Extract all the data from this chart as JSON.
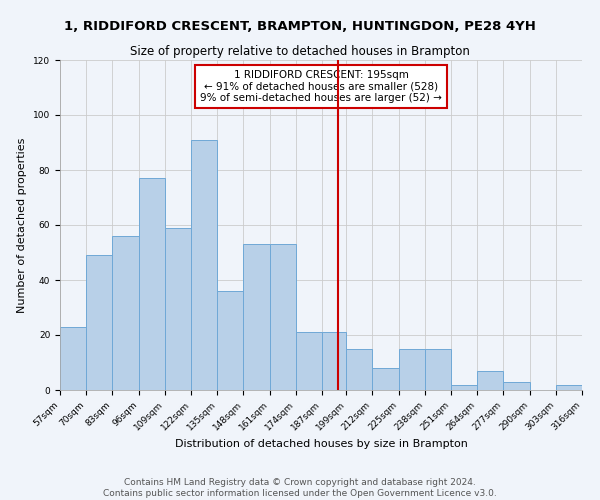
{
  "title": "1, RIDDIFORD CRESCENT, BRAMPTON, HUNTINGDON, PE28 4YH",
  "subtitle": "Size of property relative to detached houses in Brampton",
  "xlabel": "Distribution of detached houses by size in Brampton",
  "ylabel": "Number of detached properties",
  "bin_edges": [
    57,
    70,
    83,
    96,
    109,
    122,
    135,
    148,
    161,
    174,
    187,
    199,
    212,
    225,
    238,
    251,
    264,
    277,
    290,
    303,
    316
  ],
  "bar_heights": [
    23,
    49,
    56,
    77,
    59,
    91,
    36,
    53,
    53,
    21,
    21,
    15,
    8,
    15,
    15,
    2,
    7,
    3,
    0,
    2
  ],
  "bar_color": "#b8d0e8",
  "bar_edgecolor": "#6fa8d6",
  "grid_color": "#cccccc",
  "background_color": "#f0f4fa",
  "vline_x": 195,
  "vline_color": "#cc0000",
  "annotation_box_color": "#cc0000",
  "annotation_lines": [
    "1 RIDDIFORD CRESCENT: 195sqm",
    "← 91% of detached houses are smaller (528)",
    "9% of semi-detached houses are larger (52) →"
  ],
  "ylim": [
    0,
    120
  ],
  "yticks": [
    0,
    20,
    40,
    60,
    80,
    100,
    120
  ],
  "footer_line1": "Contains HM Land Registry data © Crown copyright and database right 2024.",
  "footer_line2": "Contains public sector information licensed under the Open Government Licence v3.0.",
  "title_fontsize": 9.5,
  "subtitle_fontsize": 8.5,
  "annotation_fontsize": 7.5,
  "footer_fontsize": 6.5,
  "ylabel_fontsize": 8,
  "xlabel_fontsize": 8,
  "tick_fontsize": 6.5
}
